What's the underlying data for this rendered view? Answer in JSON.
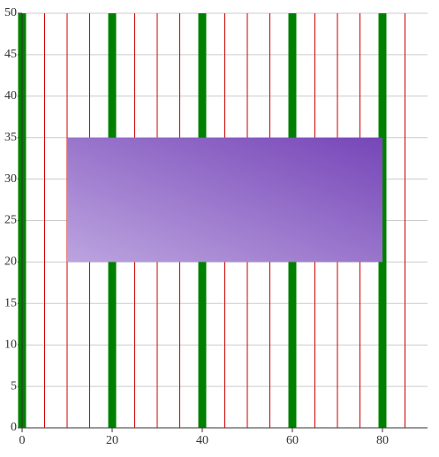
{
  "chart_data": {
    "type": "band",
    "rect": {
      "x": [
        10,
        80
      ],
      "y": [
        20,
        35
      ],
      "colors": [
        "#bca4df",
        "#7646b8"
      ]
    },
    "major_x": [
      0,
      20,
      40,
      60,
      80
    ],
    "major_color": "#008000",
    "minor_x": [
      5,
      10,
      15,
      25,
      30,
      35,
      45,
      50,
      55,
      65,
      70,
      75,
      85
    ],
    "minor_color": "#cc0000",
    "xlim": [
      0,
      90
    ],
    "ylim": [
      0,
      50
    ],
    "xticks": [
      0,
      20,
      40,
      60,
      80
    ],
    "yticks": [
      0,
      5,
      10,
      15,
      20,
      25,
      30,
      35,
      40,
      45,
      50
    ],
    "grid": true
  }
}
